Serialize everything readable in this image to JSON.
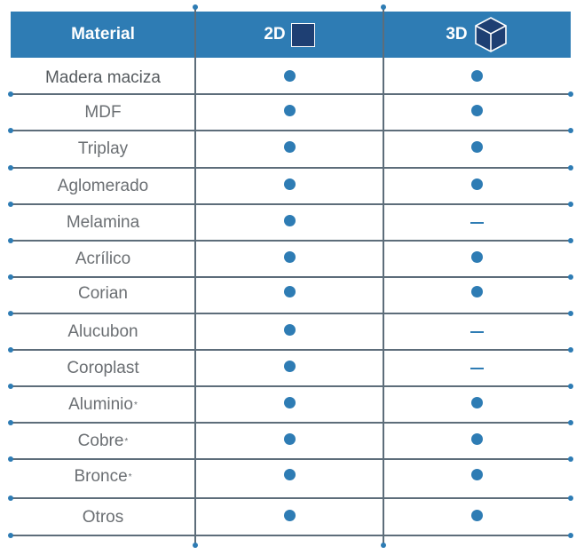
{
  "header": {
    "material": "Material",
    "col2d": "2D",
    "col3d": "3D",
    "col2d_icon": "square-icon",
    "col3d_icon": "cube-icon"
  },
  "colors": {
    "header_bg": "#2e7cb4",
    "accent": "#2e7cb4",
    "square_fill": "#1e3f73",
    "grid_line": "#5d6d7a",
    "text": "#6b6f73"
  },
  "rows": [
    {
      "name": "Madera maciza",
      "note": "",
      "d2": "dot",
      "d3": "dot"
    },
    {
      "name": "MDF",
      "note": "",
      "d2": "dot",
      "d3": "dot"
    },
    {
      "name": "Triplay",
      "note": "",
      "d2": "dot",
      "d3": "dot"
    },
    {
      "name": "Aglomerado",
      "note": "",
      "d2": "dot",
      "d3": "dot"
    },
    {
      "name": "Melamina",
      "note": "",
      "d2": "dot",
      "d3": "dash"
    },
    {
      "name": "Acrílico",
      "note": "",
      "d2": "dot",
      "d3": "dot"
    },
    {
      "name": "Corian",
      "note": "",
      "d2": "dot",
      "d3": "dot"
    },
    {
      "name": "Alucubon",
      "note": "",
      "d2": "dot",
      "d3": "dash"
    },
    {
      "name": "Coroplast",
      "note": "",
      "d2": "dot",
      "d3": "dash"
    },
    {
      "name": "Aluminio",
      "note": "*",
      "d2": "dot",
      "d3": "dot"
    },
    {
      "name": "Cobre",
      "note": "*",
      "d2": "dot",
      "d3": "dot"
    },
    {
      "name": "Bronce",
      "note": "*",
      "d2": "dot",
      "d3": "dot"
    },
    {
      "name": "Otros",
      "note": "",
      "d2": "dot",
      "d3": "dot"
    }
  ]
}
